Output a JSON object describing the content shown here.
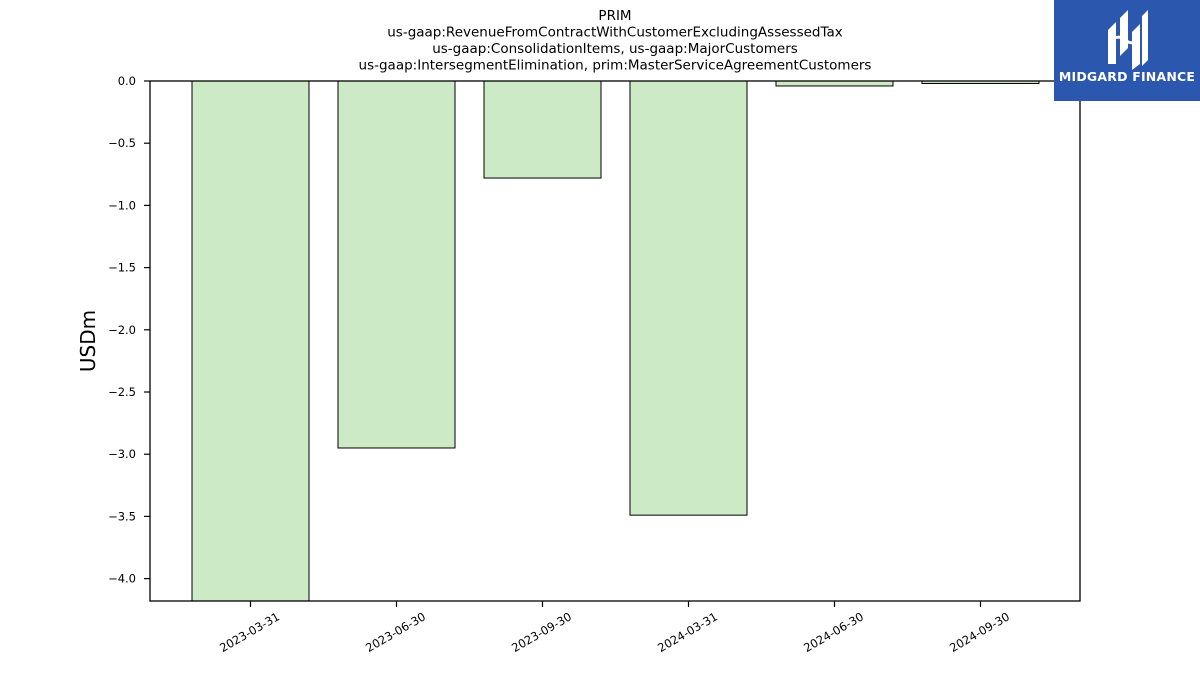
{
  "chart_data": {
    "type": "bar",
    "title_lines": [
      "PRIM",
      "us-gaap:RevenueFromContractWithCustomerExcludingAssessedTax",
      "us-gaap:ConsolidationItems, us-gaap:MajorCustomers",
      "us-gaap:IntersegmentElimination, prim:MasterServiceAgreementCustomers"
    ],
    "ylabel": "USDm",
    "xlabel": "",
    "categories": [
      "2023-03-31",
      "2023-06-30",
      "2023-09-30",
      "2024-03-31",
      "2024-06-30",
      "2024-09-30"
    ],
    "values": [
      -4.18,
      -2.95,
      -0.78,
      -3.49,
      -0.04,
      -0.02
    ],
    "ylim": [
      -4.18,
      0.0
    ],
    "yticks": [
      0.0,
      -0.5,
      -1.0,
      -1.5,
      -2.0,
      -2.5,
      -3.0,
      -3.5,
      -4.0
    ],
    "ytick_labels": [
      "0.0",
      "−0.5",
      "−1.0",
      "−1.5",
      "−2.0",
      "−2.5",
      "−3.0",
      "−3.5",
      "−4.0"
    ],
    "grid": false,
    "bar_color": "#cdeac7",
    "bar_edge_color": "#000000"
  },
  "logo": {
    "text": "MIDGARD FINANCE",
    "background": "#2b57ae"
  }
}
